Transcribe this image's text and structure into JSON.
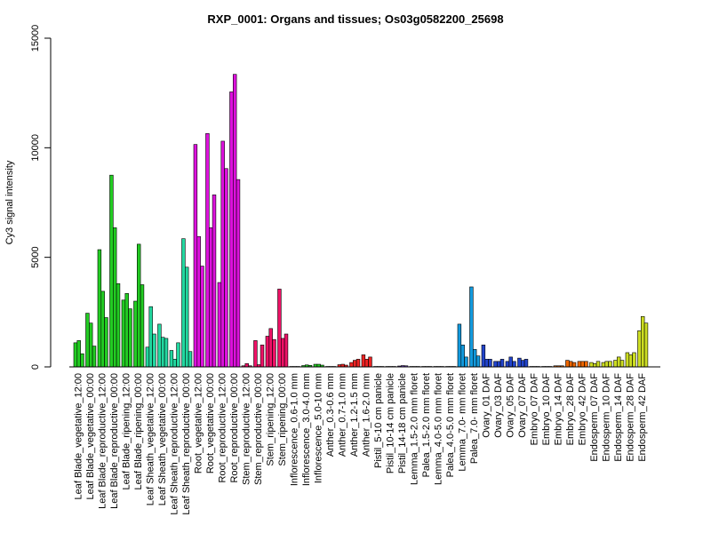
{
  "chart_data": {
    "type": "bar",
    "title": "RXP_0001: Organs and tissues; Os03g0582200_25698",
    "xlabel": "",
    "ylabel": "Cy3 signal intensity",
    "ylim": [
      0,
      15000
    ],
    "yticks": [
      0,
      5000,
      10000,
      15000
    ],
    "grid": false,
    "legend": "none",
    "categories": [
      "Leaf Blade_vegetative_12:00",
      "Leaf Blade_vegetative_00:00",
      "Leaf Blade_reproductive_12:00",
      "Leaf Blade_reproductive_00:00",
      "Leaf Blade_ripening_12:00",
      "Leaf Blade_ripening_00:00",
      "Leaf Sheath_vegetative_12:00",
      "Leaf Sheath_vegetative_00:00",
      "Leaf Sheath_reproductive_12:00",
      "Leaf Sheath_reproductive_00:00",
      "Root_vegetative_12:00",
      "Root_vegetative_00:00",
      "Root_reproductive_12:00",
      "Root_reproductive_00:00",
      "Stem_reproductive_12:00",
      "Stem_reproductive_00:00",
      "Stem_ripening_12:00",
      "Stem_ripening_00:00",
      "Inflorescence_0.6-1.0 mm",
      "Inflorescence_3.0-4.0 mm",
      "Inflorescence_5.0-10 mm",
      "Anther_0.3-0.6 mm",
      "Anther_0.7-1.0 mm",
      "Anther_1.2-1.5 mm",
      "Anther_1.6-2.0 mm",
      "Pistil_5-10 cm panicle",
      "Pistil_10-14 cm panicle",
      "Pistil_14-18 cm panicle",
      "Lemma_1.5-2.0 mm floret",
      "Palea_1.5-2.0 mm floret",
      "Lemma_4.0-5.0 mm floret",
      "Palea_4.0-5.0 mm floret",
      "Lemma_7.0- mm floret",
      "Palea_7.0- mm floret",
      "Ovary_01 DAF",
      "Ovary_03 DAF",
      "Ovary_05 DAF",
      "Ovary_07 DAF",
      "Embryo_07 DAF",
      "Embryo_10 DAF",
      "Embryo_14 DAF",
      "Embryo_28 DAF",
      "Embryo_42 DAF",
      "Endosperm_07 DAF",
      "Endosperm_10 DAF",
      "Endosperm_14 DAF",
      "Endosperm_28 DAF",
      "Endosperm_42 DAF"
    ],
    "groups": [
      {
        "color": "#22cc22",
        "values": [
          1100,
          1200,
          600
        ]
      },
      {
        "color": "#22cc22",
        "values": [
          2450,
          2000,
          950
        ]
      },
      {
        "color": "#22cc22",
        "values": [
          5350,
          3450,
          2250
        ]
      },
      {
        "color": "#22cc22",
        "values": [
          8750,
          6350,
          3800
        ]
      },
      {
        "color": "#22cc22",
        "values": [
          3050,
          3350,
          2650
        ]
      },
      {
        "color": "#22cc22",
        "values": [
          3000,
          5600,
          3750
        ]
      },
      {
        "color": "#22d8a0",
        "values": [
          900,
          2750,
          1500
        ]
      },
      {
        "color": "#22d8a0",
        "values": [
          1950,
          1350,
          1300
        ]
      },
      {
        "color": "#22d8a0",
        "values": [
          750,
          350,
          1100
        ]
      },
      {
        "color": "#22d8a0",
        "values": [
          5850,
          4550,
          700
        ]
      },
      {
        "color": "#dd11dd",
        "values": [
          10150,
          5950,
          4600
        ]
      },
      {
        "color": "#dd11dd",
        "values": [
          10650,
          6350,
          7850
        ]
      },
      {
        "color": "#dd11dd",
        "values": [
          3850,
          10300,
          9050
        ]
      },
      {
        "color": "#dd11dd",
        "values": [
          12550,
          13350,
          8550
        ]
      },
      {
        "color": "#ee1166",
        "values": [
          50,
          150,
          50
        ]
      },
      {
        "color": "#ee1166",
        "values": [
          1200,
          100,
          1000
        ]
      },
      {
        "color": "#ee1166",
        "values": [
          1400,
          1750,
          1250
        ]
      },
      {
        "color": "#ee1166",
        "values": [
          3550,
          1300,
          1500
        ]
      },
      {
        "color": "#22cc22",
        "values": [
          20,
          20,
          20
        ]
      },
      {
        "color": "#22cc22",
        "values": [
          60,
          90,
          70
        ]
      },
      {
        "color": "#22cc22",
        "values": [
          120,
          120,
          80
        ]
      },
      {
        "color": "#ee2222",
        "values": [
          20,
          20,
          20
        ]
      },
      {
        "color": "#ee2222",
        "values": [
          100,
          120,
          80
        ]
      },
      {
        "color": "#ee2222",
        "values": [
          200,
          300,
          350
        ]
      },
      {
        "color": "#ee2222",
        "values": [
          550,
          350,
          450
        ]
      },
      {
        "color": "#7744cc",
        "values": [
          20,
          20,
          20
        ]
      },
      {
        "color": "#7744cc",
        "values": [
          20,
          20,
          20
        ]
      },
      {
        "color": "#7744cc",
        "values": [
          40,
          60,
          50
        ]
      },
      {
        "color": "#7744cc",
        "values": [
          20,
          20,
          20
        ]
      },
      {
        "color": "#7744cc",
        "values": [
          20,
          20,
          20
        ]
      },
      {
        "color": "#7744cc",
        "values": [
          20,
          20,
          20
        ]
      },
      {
        "color": "#7744cc",
        "values": [
          20,
          20,
          20
        ]
      },
      {
        "color": "#1199dd",
        "values": [
          1950,
          1000,
          450
        ]
      },
      {
        "color": "#1199dd",
        "values": [
          3650,
          800,
          500
        ]
      },
      {
        "color": "#2244cc",
        "values": [
          1000,
          350,
          350
        ]
      },
      {
        "color": "#2244cc",
        "values": [
          250,
          250,
          350
        ]
      },
      {
        "color": "#2244cc",
        "values": [
          250,
          450,
          250
        ]
      },
      {
        "color": "#2244cc",
        "values": [
          400,
          300,
          350
        ]
      },
      {
        "color": "#ee6600",
        "values": [
          20,
          20,
          20
        ]
      },
      {
        "color": "#ee6600",
        "values": [
          20,
          20,
          20
        ]
      },
      {
        "color": "#ee6600",
        "values": [
          50,
          50,
          50
        ]
      },
      {
        "color": "#ee6600",
        "values": [
          300,
          250,
          200
        ]
      },
      {
        "color": "#ee6600",
        "values": [
          250,
          250,
          250
        ]
      },
      {
        "color": "#ccdd22",
        "values": [
          200,
          150,
          250
        ]
      },
      {
        "color": "#ccdd22",
        "values": [
          200,
          250,
          250
        ]
      },
      {
        "color": "#ccdd22",
        "values": [
          300,
          450,
          300
        ]
      },
      {
        "color": "#ccdd22",
        "values": [
          650,
          550,
          650
        ]
      },
      {
        "color": "#ccdd22",
        "values": [
          1650,
          2300,
          2000
        ]
      }
    ]
  }
}
